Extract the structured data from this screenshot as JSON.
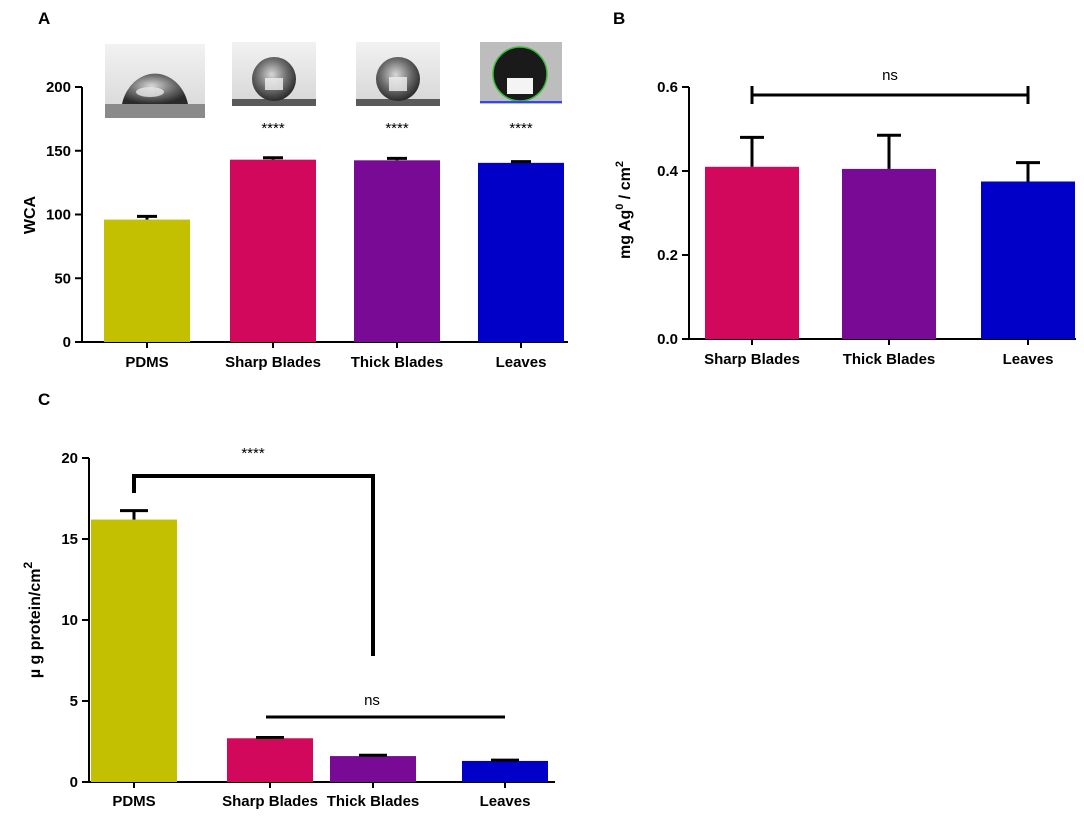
{
  "panels": {
    "a": "A",
    "b": "B",
    "c": "C"
  },
  "colors": {
    "PDMS": "#c2c000",
    "Sharp Blades": "#d2085c",
    "Thick Blades": "#780a96",
    "Leaves": "#0000c8"
  },
  "chart_data": [
    {
      "type": "bar",
      "panel": "A",
      "categories": [
        "PDMS",
        "Sharp Blades",
        "Thick Blades",
        "Leaves"
      ],
      "values": [
        96,
        143,
        142.5,
        140.5
      ],
      "errors": [
        2.5,
        1.5,
        1.5,
        1.0
      ],
      "ylabel": "WCA",
      "ylim": [
        0,
        200
      ],
      "yticks": [
        "0",
        "50",
        "100",
        "150",
        "200"
      ],
      "annotations": [
        "",
        "****",
        "****",
        "****"
      ],
      "insets": "water droplet contact-angle photographs above each bar",
      "grid": false
    },
    {
      "type": "bar",
      "panel": "B",
      "categories": [
        "Sharp Blades",
        "Thick Blades",
        "Leaves"
      ],
      "values": [
        0.41,
        0.405,
        0.375
      ],
      "errors": [
        0.07,
        0.08,
        0.045
      ],
      "ylabel_main": "mg Ag",
      "ylabel_sup": "0",
      "ylabel_rest": " / cm",
      "ylabel_sup2": "2",
      "ylim": [
        0,
        0.6
      ],
      "yticks": [
        "0.0",
        "0.2",
        "0.4",
        "0.6"
      ],
      "bracket_label": "ns",
      "grid": false
    },
    {
      "type": "bar",
      "panel": "C",
      "categories": [
        "PDMS",
        "Sharp Blades",
        "Thick Blades",
        "Leaves"
      ],
      "values": [
        16.2,
        2.7,
        1.6,
        1.3
      ],
      "errors": [
        0.55,
        0.05,
        0.05,
        0.05
      ],
      "ylabel_main": "µ g protein/cm",
      "ylabel_sup": "2",
      "ylim": [
        0,
        20
      ],
      "yticks": [
        "0",
        "5",
        "10",
        "15",
        "20"
      ],
      "bracket_label_1": "****",
      "bracket_label_2": "ns",
      "grid": false
    }
  ]
}
